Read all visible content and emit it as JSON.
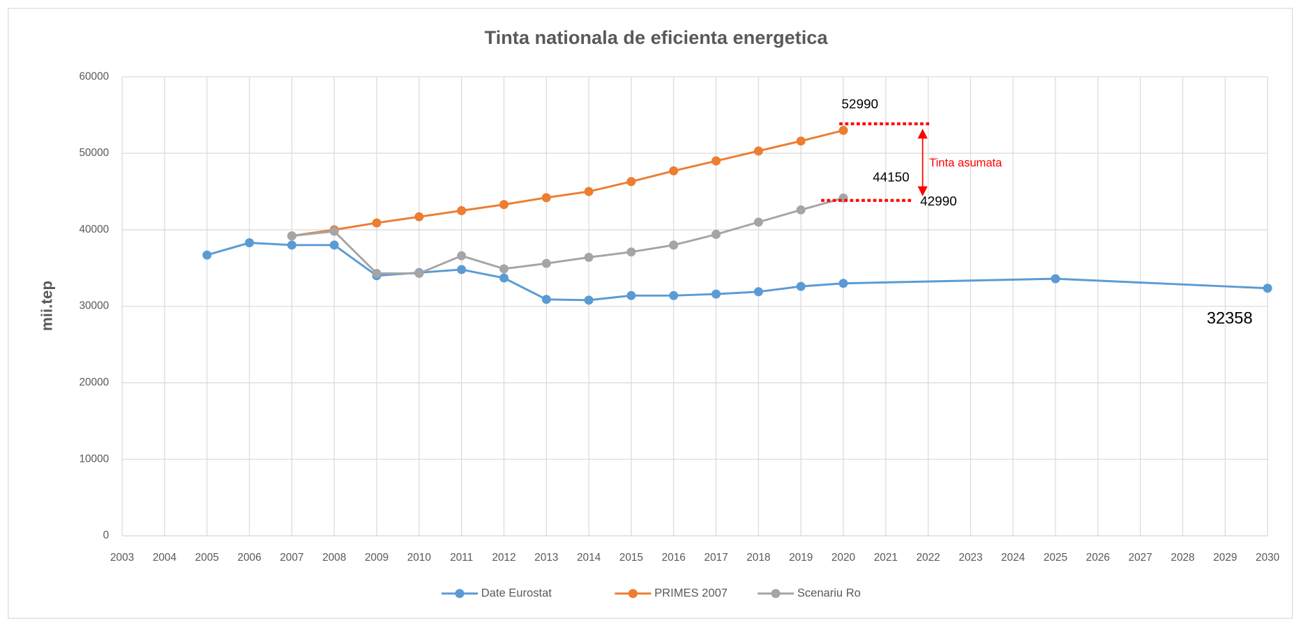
{
  "chart_data": {
    "type": "line",
    "title": "Tinta nationala de eficienta energetica",
    "y_label": "mii.tep",
    "xlim": [
      2003,
      2030
    ],
    "xticks": [
      2003,
      2004,
      2005,
      2006,
      2007,
      2008,
      2009,
      2010,
      2011,
      2012,
      2013,
      2014,
      2015,
      2016,
      2017,
      2018,
      2019,
      2020,
      2021,
      2022,
      2023,
      2024,
      2025,
      2026,
      2027,
      2028,
      2029,
      2030
    ],
    "ylim": [
      0,
      60000
    ],
    "yticks": [
      0,
      10000,
      20000,
      30000,
      40000,
      50000,
      60000
    ],
    "grid": true,
    "legend": "bottom",
    "series": [
      {
        "name": "Date Eurostat",
        "color": "#5b9bd5",
        "x": [
          2005,
          2006,
          2007,
          2008,
          2009,
          2010,
          2011,
          2012,
          2013,
          2014,
          2015,
          2016,
          2017,
          2018,
          2019,
          2020,
          2025,
          2030
        ],
        "values": [
          36700,
          38300,
          38000,
          38000,
          34000,
          34400,
          34800,
          33700,
          30900,
          30800,
          31400,
          31400,
          31600,
          31900,
          32600,
          33000,
          33600,
          32358
        ]
      },
      {
        "name": "PRIMES 2007",
        "color": "#ed7d31",
        "x": [
          2007,
          2008,
          2009,
          2010,
          2011,
          2012,
          2013,
          2014,
          2015,
          2016,
          2017,
          2018,
          2019,
          2020
        ],
        "values": [
          39200,
          40000,
          40900,
          41700,
          42500,
          43300,
          44200,
          45000,
          46300,
          47700,
          49000,
          50300,
          51600,
          52990
        ]
      },
      {
        "name": "Scenariu Ro",
        "color": "#a5a5a5",
        "x": [
          2007,
          2008,
          2009,
          2010,
          2011,
          2012,
          2013,
          2014,
          2015,
          2016,
          2017,
          2018,
          2019,
          2020
        ],
        "values": [
          39200,
          39800,
          34300,
          34300,
          36600,
          34900,
          35600,
          36400,
          37100,
          38000,
          39400,
          41000,
          42600,
          44150
        ]
      }
    ],
    "annotations": [
      "52990",
      "44150",
      "42990",
      "32358",
      "Tinta asumata"
    ]
  }
}
